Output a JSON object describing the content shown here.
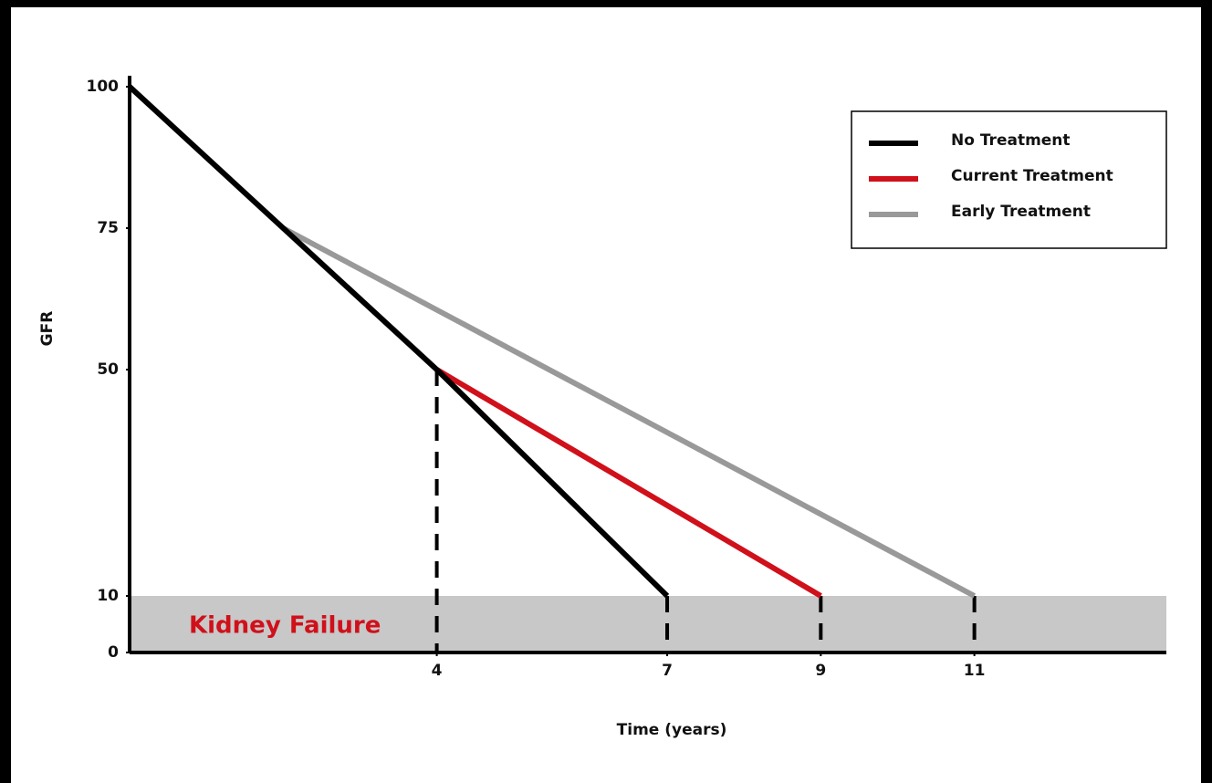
{
  "chart_data": {
    "type": "line",
    "x_label": "Time (years)",
    "y_label": "GFR",
    "series": [
      {
        "name": "No Treatment",
        "color": "#000000",
        "x": [
          0,
          4,
          7
        ],
        "values": [
          100,
          50,
          10
        ]
      },
      {
        "name": "Current Treatment",
        "color": "#d0101a",
        "x": [
          4,
          9
        ],
        "values": [
          50,
          10
        ]
      },
      {
        "name": "Early Treatment",
        "color": "#999999",
        "x": [
          2,
          11
        ],
        "values": [
          75,
          10
        ]
      }
    ],
    "xlim": [
      0,
      13.5
    ],
    "ylim": [
      0,
      100
    ],
    "xticks": [
      4,
      7,
      9,
      11
    ],
    "yticks": [
      0,
      10,
      50,
      75,
      100
    ],
    "shaded_region": {
      "label": "Kidney Failure",
      "ylim": [
        0,
        10
      ],
      "color": "#c8c8c8"
    },
    "reference_lines": [
      {
        "x": 4,
        "y": 50
      },
      {
        "x": 7,
        "y": 10
      },
      {
        "x": 9,
        "y": 10
      },
      {
        "x": 11,
        "y": 10
      }
    ],
    "legend": "upper right"
  }
}
